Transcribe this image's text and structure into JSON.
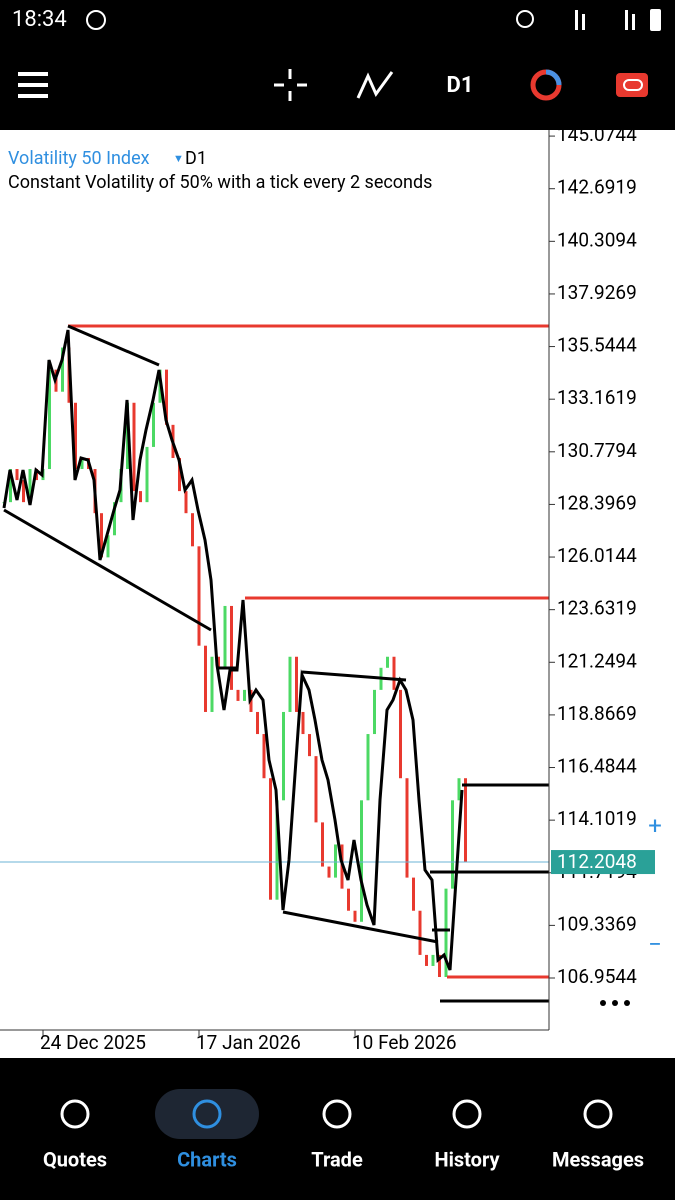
{
  "status_bar": {
    "time": "18:34"
  },
  "toolbar": {
    "timeframe": "D1"
  },
  "chart_data": {
    "type": "candlestick",
    "title": "Volatility 50 Index",
    "timeframe": "D1",
    "subtitle": "Constant Volatility of 50% with a tick every 2 seconds",
    "categories": [
      null,
      null,
      null,
      null,
      null,
      null,
      "24 Dec 2025",
      null,
      null,
      null,
      null,
      null,
      null,
      null,
      null,
      null,
      null,
      null,
      null,
      null,
      null,
      null,
      null,
      null,
      null,
      null,
      null,
      null,
      null,
      null,
      "17 Jan 2026",
      null,
      null,
      null,
      null,
      null,
      null,
      null,
      null,
      null,
      null,
      null,
      null,
      null,
      null,
      null,
      null,
      null,
      null,
      null,
      null,
      null,
      null,
      null,
      "10 Feb 2026",
      null,
      null,
      null,
      null,
      null,
      null,
      null,
      null,
      null,
      null,
      null,
      null,
      null,
      null,
      null,
      null,
      null
    ],
    "values": [
      128.5,
      130,
      129.5,
      128.5,
      130,
      129.5,
      130,
      134.5,
      133.5,
      135.5,
      133,
      130,
      130.5,
      130,
      128,
      126,
      127,
      128.5,
      130,
      133,
      129,
      128.5,
      131,
      133,
      134.5,
      132,
      130.5,
      129,
      128,
      126.5,
      122,
      119,
      121.5,
      121,
      123.8,
      120,
      119.5,
      120,
      119,
      118,
      116,
      110.5,
      115,
      119,
      121.5,
      119,
      118,
      117,
      114,
      112,
      111.5,
      113,
      111,
      110,
      109.5,
      115,
      118,
      120,
      121,
      121.5,
      120,
      116,
      111.5,
      110,
      108,
      107.5,
      108,
      107,
      111,
      115,
      116,
      112.2048
    ],
    "up_color": "#4cd964",
    "down_color": "#e8392f",
    "ylim": [
      104.6,
      145.35
    ],
    "yticks": [
      145.0744,
      142.6919,
      140.3094,
      137.9269,
      135.5444,
      133.1619,
      130.7794,
      128.3969,
      126.0144,
      123.6319,
      121.2494,
      118.8669,
      116.4844,
      114.1019,
      111.7194,
      109.3369,
      106.9544
    ],
    "current_price": 112.2048
  },
  "nav": {
    "items": [
      "Quotes",
      "Charts",
      "Trade",
      "History",
      "Messages"
    ],
    "active_index": 1
  }
}
